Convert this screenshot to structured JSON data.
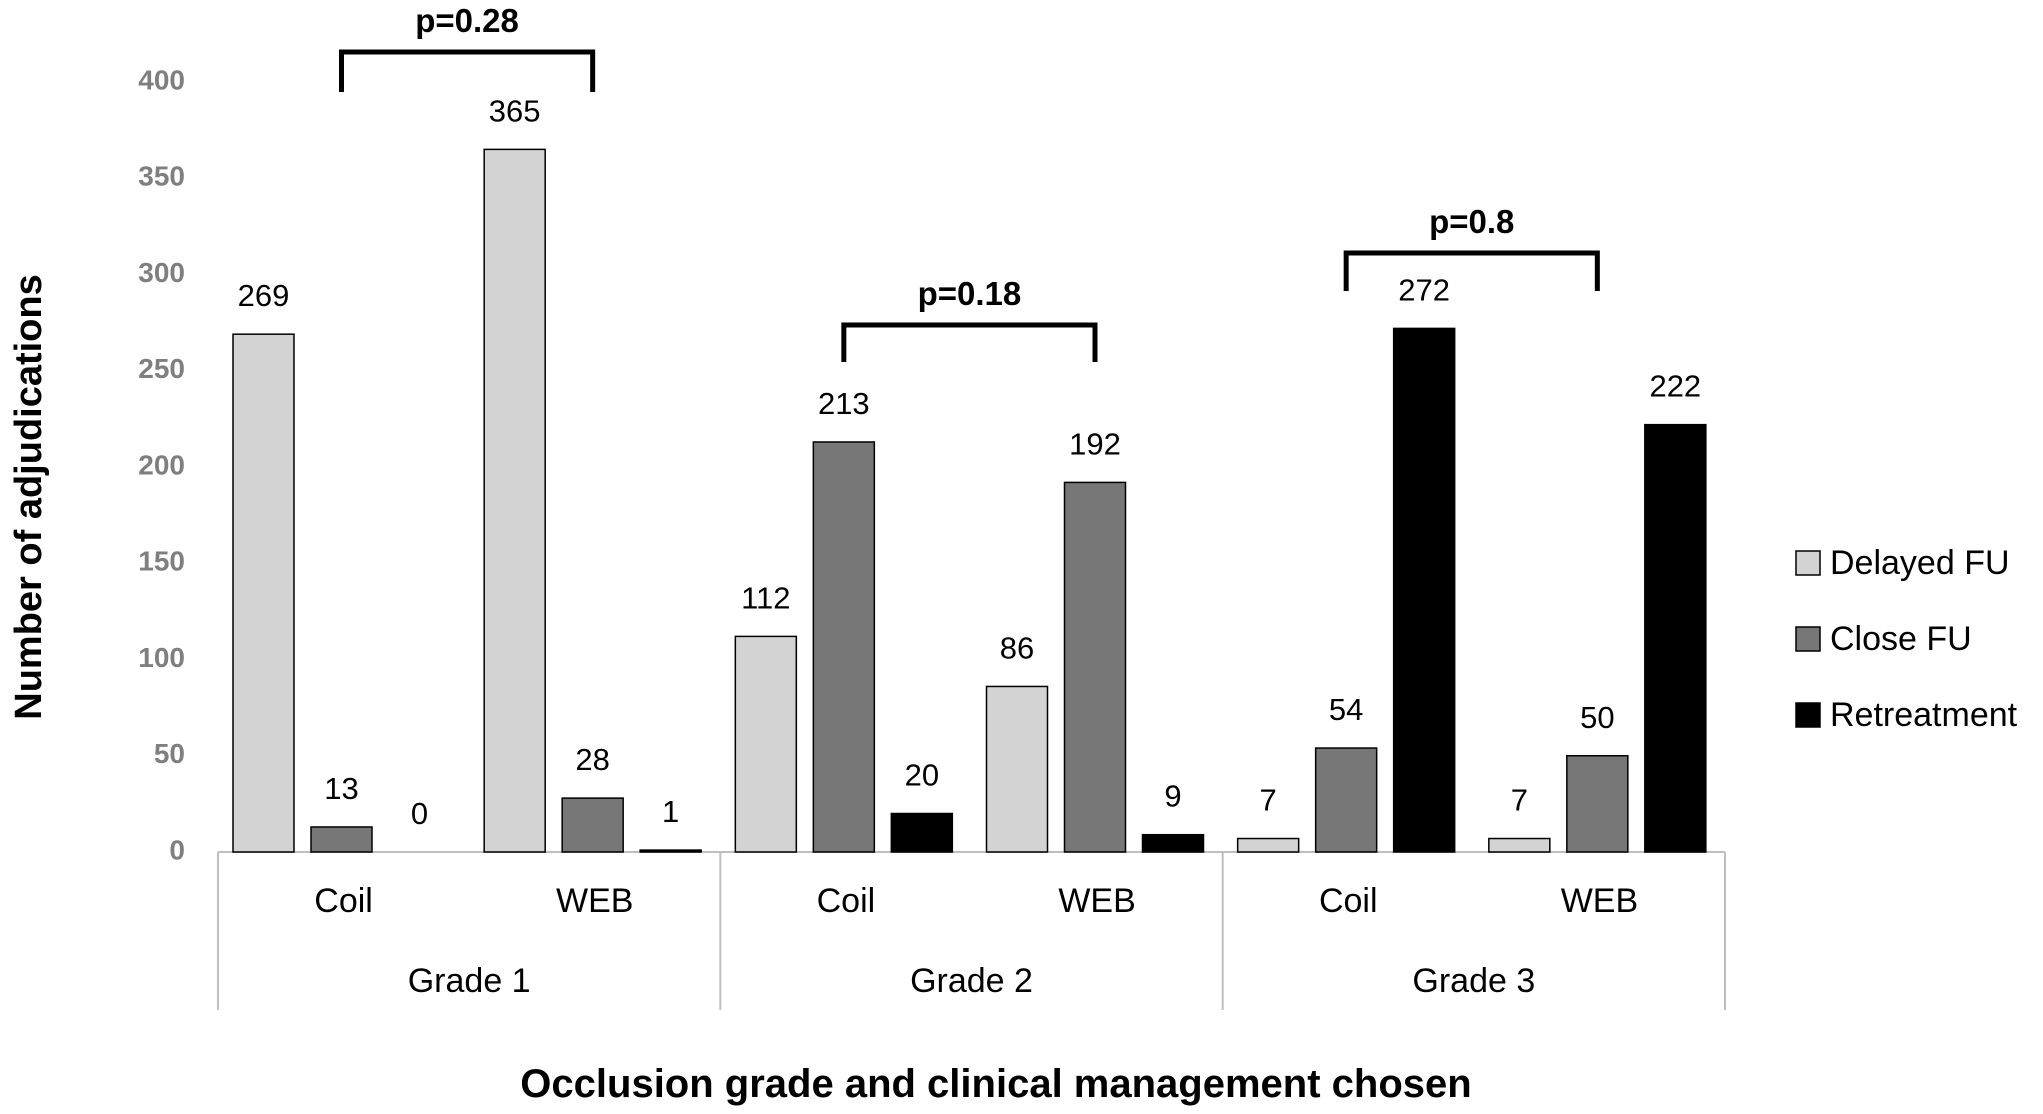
{
  "chart_data": {
    "type": "bar",
    "xlabel": "Occlusion grade and clinical management chosen",
    "ylabel": "Number of adjudications",
    "ylim": [
      0,
      400
    ],
    "yticks": [
      0,
      50,
      100,
      150,
      200,
      250,
      300,
      350,
      400
    ],
    "groups": [
      "Grade 1",
      "Grade 2",
      "Grade 3"
    ],
    "categories": [
      "Coil",
      "WEB",
      "Coil",
      "WEB",
      "Coil",
      "WEB"
    ],
    "series": [
      {
        "name": "Delayed FU",
        "color": "#d3d3d3",
        "values": [
          269,
          365,
          112,
          86,
          7,
          7
        ]
      },
      {
        "name": "Close FU",
        "color": "#777777",
        "values": [
          13,
          28,
          213,
          192,
          54,
          50
        ]
      },
      {
        "name": "Retreatment",
        "color": "#000000",
        "values": [
          0,
          1,
          20,
          9,
          272,
          222
        ]
      }
    ],
    "annotations": [
      {
        "text": "p=0.28",
        "from_category": 0,
        "to_category": 1
      },
      {
        "text": "p=0.18",
        "from_category": 2,
        "to_category": 3
      },
      {
        "text": "p=0.8",
        "from_category": 4,
        "to_category": 5
      }
    ],
    "legend_position": "right",
    "grid": false
  }
}
